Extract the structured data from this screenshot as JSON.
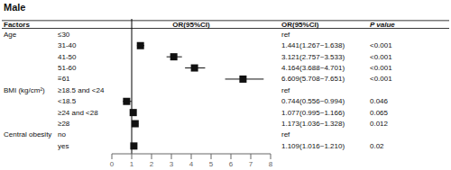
{
  "chart_data": {
    "type": "forest",
    "title": "Male",
    "column_headers": [
      "Factors",
      "OR(95%CI)",
      "OR(95%CI)",
      "P value"
    ],
    "groups": [
      "Age",
      null,
      null,
      null,
      null,
      "BMI (kg/cm²)",
      null,
      null,
      null,
      "Central obesity",
      null
    ],
    "categories": [
      "≤30",
      "31-40",
      "41-50",
      "51-60",
      "≡61",
      "≥18.5 and <24",
      "<18.5",
      "≥24 and <28",
      "≥28",
      "no",
      "yes"
    ],
    "values": [
      null,
      1.441,
      3.121,
      4.164,
      6.609,
      null,
      0.744,
      1.077,
      1.173,
      null,
      1.109
    ],
    "ci_lo": [
      null,
      1.267,
      2.757,
      3.688,
      5.708,
      null,
      0.556,
      0.995,
      1.036,
      null,
      1.016
    ],
    "ci_hi": [
      null,
      1.638,
      3.533,
      4.701,
      7.651,
      null,
      0.994,
      1.166,
      1.328,
      null,
      1.21
    ],
    "or_text": [
      "ref",
      "1.441(1.267~1.638)",
      "3.121(2.757~3.533)",
      "4.164(3.688~4.701)",
      "6.609(5.708~7.651)",
      "ref",
      "0.744(0.556~0.994)",
      "1.077(0.995~1.166)",
      "1.173(1.036~1.328)",
      "ref",
      "1.109(1.016~1.210)"
    ],
    "p_values": [
      null,
      "<0.001",
      "<0.001",
      "<0.001",
      "<0.001",
      null,
      "0.046",
      "0.065",
      "0.012",
      null,
      "0.02"
    ],
    "xlim": [
      0,
      8
    ],
    "xticks": [
      0,
      1,
      2,
      3,
      4,
      5,
      6,
      7,
      8
    ],
    "reference_line": 1,
    "color": "#111111"
  }
}
